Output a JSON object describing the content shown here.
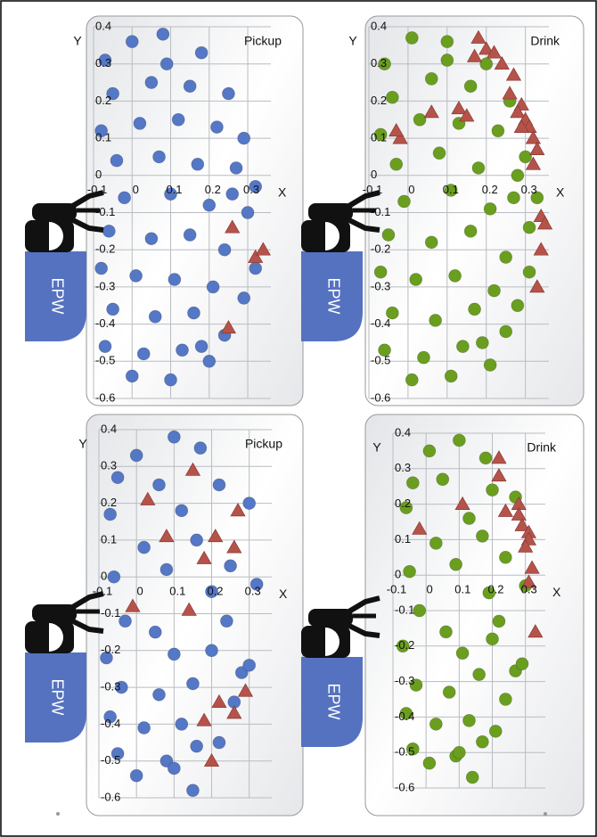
{
  "chart_data": [
    {
      "type": "scatter",
      "title": "Pickup",
      "xlabel": "X",
      "ylabel": "Y",
      "annotation": "EPW",
      "xlim": [
        -0.1,
        0.36
      ],
      "ylim": [
        -0.6,
        0.4
      ],
      "xticks": [
        -0.1,
        0,
        0.1,
        0.2,
        0.3
      ],
      "yticks": [
        -0.6,
        -0.5,
        -0.4,
        -0.3,
        -0.2,
        -0.1,
        0,
        0.1,
        0.2,
        0.3,
        0.4
      ],
      "grid": true,
      "series": [
        {
          "marker": "circle",
          "color": "#5477c6",
          "x": [
            -0.07,
            0.0,
            0.08,
            0.18,
            -0.05,
            0.05,
            0.15,
            0.25,
            -0.08,
            0.02,
            0.12,
            0.22,
            0.29,
            -0.04,
            0.07,
            0.17,
            0.27,
            0.32,
            -0.02,
            0.1,
            0.2,
            0.3,
            -0.06,
            0.05,
            0.15,
            0.24,
            0.32,
            -0.08,
            0.01,
            0.11,
            0.21,
            0.29,
            -0.05,
            0.06,
            0.16,
            0.24,
            -0.07,
            0.03,
            0.13,
            0.2,
            0.0,
            0.1,
            0.18,
            0.09,
            0.26
          ],
          "y": [
            0.31,
            0.36,
            0.38,
            0.33,
            0.22,
            0.25,
            0.24,
            0.22,
            0.12,
            0.14,
            0.15,
            0.13,
            0.1,
            0.04,
            0.05,
            0.03,
            0.02,
            -0.03,
            -0.06,
            -0.05,
            -0.08,
            -0.1,
            -0.15,
            -0.17,
            -0.16,
            -0.2,
            -0.25,
            -0.25,
            -0.27,
            -0.28,
            -0.3,
            -0.33,
            -0.36,
            -0.38,
            -0.37,
            -0.43,
            -0.46,
            -0.48,
            -0.47,
            -0.5,
            -0.54,
            -0.55,
            -0.46,
            0.3,
            -0.05
          ]
        },
        {
          "marker": "triangle",
          "color": "#b5534b",
          "x": [
            0.26,
            0.32,
            0.34,
            0.25
          ],
          "y": [
            -0.14,
            -0.22,
            -0.2,
            -0.41
          ]
        }
      ]
    },
    {
      "type": "scatter",
      "title": "Drink",
      "xlabel": "X",
      "ylabel": "Y",
      "annotation": "EPW",
      "xlim": [
        -0.1,
        0.36
      ],
      "ylim": [
        -0.6,
        0.4
      ],
      "xticks": [
        -0.1,
        0,
        0.1,
        0.2,
        0.3
      ],
      "yticks": [
        -0.6,
        -0.5,
        -0.4,
        -0.3,
        -0.2,
        -0.1,
        0,
        0.1,
        0.2,
        0.3,
        0.4
      ],
      "grid": true,
      "series": [
        {
          "marker": "circle",
          "color": "#6a9e1f",
          "x": [
            -0.06,
            0.01,
            0.1,
            0.2,
            -0.04,
            0.06,
            0.16,
            0.26,
            -0.07,
            0.03,
            0.13,
            0.23,
            0.3,
            -0.03,
            0.08,
            0.18,
            0.28,
            0.33,
            -0.01,
            0.11,
            0.21,
            0.31,
            -0.05,
            0.06,
            0.16,
            0.25,
            0.31,
            -0.07,
            0.02,
            0.12,
            0.22,
            0.28,
            -0.04,
            0.07,
            0.17,
            0.25,
            -0.06,
            0.04,
            0.14,
            0.21,
            0.01,
            0.11,
            0.19,
            0.1,
            0.27
          ],
          "y": [
            0.3,
            0.37,
            0.36,
            0.3,
            0.21,
            0.26,
            0.24,
            0.2,
            0.11,
            0.15,
            0.14,
            0.12,
            0.05,
            0.03,
            0.06,
            0.02,
            0.0,
            -0.06,
            -0.07,
            -0.04,
            -0.09,
            -0.14,
            -0.16,
            -0.18,
            -0.15,
            -0.22,
            -0.26,
            -0.26,
            -0.28,
            -0.27,
            -0.31,
            -0.35,
            -0.37,
            -0.39,
            -0.36,
            -0.42,
            -0.47,
            -0.49,
            -0.46,
            -0.51,
            -0.55,
            -0.54,
            -0.45,
            0.31,
            -0.06
          ]
        },
        {
          "marker": "triangle",
          "color": "#b5534b",
          "x": [
            0.18,
            0.2,
            0.17,
            0.22,
            0.24,
            0.27,
            0.26,
            0.29,
            0.28,
            0.3,
            0.31,
            0.29,
            0.32,
            0.33,
            0.32,
            0.06,
            0.13,
            0.15,
            -0.02,
            -0.03,
            0.34,
            0.35,
            0.34,
            0.33
          ],
          "y": [
            0.37,
            0.34,
            0.32,
            0.33,
            0.3,
            0.27,
            0.22,
            0.19,
            0.17,
            0.15,
            0.13,
            0.13,
            0.1,
            0.07,
            0.03,
            0.17,
            0.18,
            0.16,
            0.1,
            0.12,
            -0.11,
            -0.13,
            -0.2,
            -0.3
          ]
        }
      ]
    },
    {
      "type": "scatter",
      "title": "Pickup",
      "xlabel": "X",
      "ylabel": "Y",
      "annotation": "EPW",
      "xlim": [
        -0.1,
        0.36
      ],
      "ylim": [
        -0.6,
        0.4
      ],
      "xticks": [
        -0.1,
        0,
        0.1,
        0.2,
        0.3
      ],
      "yticks": [
        -0.6,
        -0.5,
        -0.4,
        -0.3,
        -0.2,
        -0.1,
        0,
        0.1,
        0.2,
        0.3,
        0.4
      ],
      "grid": true,
      "series": [
        {
          "marker": "circle",
          "color": "#5477c6",
          "x": [
            0.0,
            0.1,
            0.17,
            -0.05,
            0.06,
            0.22,
            -0.07,
            0.12,
            0.3,
            0.02,
            0.16,
            0.25,
            -0.06,
            0.08,
            0.2,
            0.32,
            -0.03,
            0.05,
            0.24,
            -0.08,
            0.1,
            0.2,
            0.28,
            -0.04,
            0.06,
            0.15,
            0.26,
            -0.07,
            0.02,
            0.12,
            0.3,
            -0.05,
            0.08,
            0.16,
            0.0,
            0.1,
            0.15,
            0.22
          ],
          "y": [
            0.33,
            0.38,
            0.35,
            0.27,
            0.25,
            0.25,
            0.17,
            0.18,
            0.2,
            0.08,
            0.1,
            0.03,
            0.0,
            0.02,
            -0.04,
            -0.02,
            -0.12,
            -0.15,
            -0.12,
            -0.22,
            -0.21,
            -0.2,
            -0.26,
            -0.3,
            -0.32,
            -0.29,
            -0.34,
            -0.38,
            -0.41,
            -0.4,
            -0.24,
            -0.48,
            -0.5,
            -0.46,
            -0.54,
            -0.52,
            -0.58,
            -0.45
          ]
        },
        {
          "marker": "triangle",
          "color": "#b5534b",
          "x": [
            0.15,
            0.03,
            0.27,
            0.08,
            0.21,
            0.26,
            0.18,
            -0.01,
            0.14,
            0.29,
            0.22,
            0.26,
            0.18,
            0.2
          ],
          "y": [
            0.29,
            0.21,
            0.18,
            0.11,
            0.11,
            0.08,
            0.05,
            -0.08,
            -0.09,
            -0.31,
            -0.34,
            -0.37,
            -0.39,
            -0.5
          ]
        }
      ]
    },
    {
      "type": "scatter",
      "title": "Drink",
      "xlabel": "X",
      "ylabel": "Y",
      "annotation": "EPW",
      "xlim": [
        -0.1,
        0.36
      ],
      "ylim": [
        -0.6,
        0.4
      ],
      "xticks": [
        -0.1,
        0,
        0.1,
        0.2,
        0.3
      ],
      "yticks": [
        -0.6,
        -0.5,
        -0.4,
        -0.3,
        -0.2,
        -0.1,
        0,
        0.1,
        0.2,
        0.3,
        0.4
      ],
      "grid": true,
      "series": [
        {
          "marker": "circle",
          "color": "#6a9e1f",
          "x": [
            0.01,
            0.1,
            0.18,
            -0.04,
            0.05,
            0.2,
            -0.06,
            0.13,
            0.27,
            0.03,
            0.17,
            0.24,
            -0.05,
            0.09,
            0.19,
            0.3,
            -0.02,
            0.06,
            0.22,
            -0.07,
            0.11,
            0.2,
            0.27,
            -0.03,
            0.07,
            0.16,
            0.24,
            -0.06,
            0.03,
            0.13,
            0.29,
            -0.04,
            0.09,
            0.17,
            0.01,
            0.1,
            0.14,
            0.21
          ],
          "y": [
            0.35,
            0.38,
            0.33,
            0.26,
            0.27,
            0.24,
            0.19,
            0.16,
            0.22,
            0.09,
            0.11,
            0.05,
            0.01,
            0.03,
            -0.05,
            -0.03,
            -0.1,
            -0.16,
            -0.13,
            -0.2,
            -0.22,
            -0.18,
            -0.27,
            -0.31,
            -0.33,
            -0.28,
            -0.35,
            -0.39,
            -0.42,
            -0.41,
            -0.25,
            -0.49,
            -0.51,
            -0.47,
            -0.53,
            -0.5,
            -0.57,
            -0.44
          ]
        },
        {
          "marker": "triangle",
          "color": "#b5534b",
          "x": [
            0.22,
            0.22,
            0.11,
            0.24,
            0.28,
            0.28,
            0.29,
            0.31,
            0.31,
            0.3,
            0.32,
            0.31,
            0.33,
            -0.02
          ],
          "y": [
            0.33,
            0.28,
            0.2,
            0.18,
            0.2,
            0.17,
            0.14,
            0.12,
            0.1,
            0.08,
            0.02,
            -0.02,
            -0.16,
            0.13
          ]
        }
      ]
    }
  ]
}
